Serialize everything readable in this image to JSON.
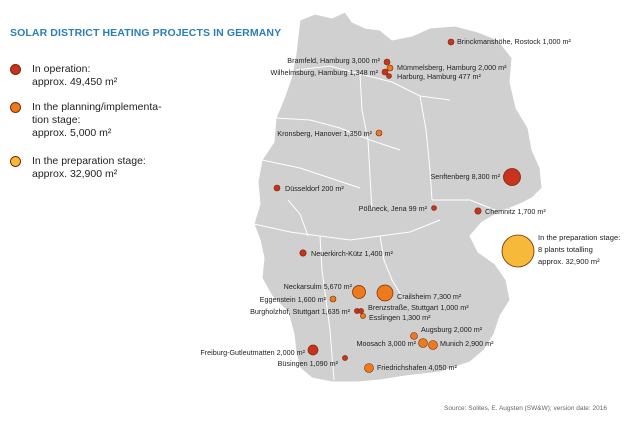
{
  "title": "SOLAR DISTRICT HEATING PROJECTS IN GERMANY",
  "legend": [
    {
      "lines": [
        "In operation:",
        "approx. 49,450 m²"
      ],
      "color": "#c8321e"
    },
    {
      "lines": [
        "In the planning/implementa-",
        "tion stage:",
        "approx. 5,000 m²"
      ],
      "color": "#ee7a1e"
    },
    {
      "lines": [
        "In the preparation stage:",
        "approx. 32,900 m²"
      ],
      "color": "#f6b93a"
    }
  ],
  "colors": {
    "operation": "#c8321e",
    "planning": "#ee7a1e",
    "preparation": "#f6b93a",
    "land": "#d0d0d0",
    "border": "#ffffff",
    "outline": "#7a2a00"
  },
  "projects": [
    {
      "name": "Brinckmanshöhe, Rostock",
      "area": "1,000 m²",
      "status": "operation"
    },
    {
      "name": "Bramfeld, Hamburg",
      "area": "3,000 m²",
      "status": "operation"
    },
    {
      "name": "Mümmelsberg, Hamburg",
      "area": "2,000 m²",
      "status": "operation"
    },
    {
      "name": "Wilhelmsburg, Hamburg",
      "area": "1,348 m²",
      "status": "operation"
    },
    {
      "name": "Harburg, Hamburg",
      "area": "477 m²",
      "status": "operation"
    },
    {
      "name": "Kronsberg, Hanover",
      "area": "1,350 m²",
      "status": "planning"
    },
    {
      "name": "Senftenberg",
      "area": "8,300 m²",
      "status": "operation"
    },
    {
      "name": "Düsseldorf",
      "area": "200 m²",
      "status": "operation"
    },
    {
      "name": "Pößneck, Jena",
      "area": "99 m²",
      "status": "operation"
    },
    {
      "name": "Chemnitz",
      "area": "1,700 m²",
      "status": "operation"
    },
    {
      "name": "Neuerkirch-Kütz",
      "area": "1,400 m²",
      "status": "operation"
    },
    {
      "name": "Neckarsulm",
      "area": "5,670 m²",
      "status": "planning"
    },
    {
      "name": "Crailsheim",
      "area": "7,300 m²",
      "status": "planning"
    },
    {
      "name": "Eggenstein",
      "area": "1,600 m²",
      "status": "planning"
    },
    {
      "name": "Burgholzhof, Stuttgart",
      "area": "1,635 m²",
      "status": "operation"
    },
    {
      "name": "Brenzstraße, Stuttgart",
      "area": "1,000 m²",
      "status": "operation"
    },
    {
      "name": "Esslingen",
      "area": "1,300 m²",
      "status": "planning"
    },
    {
      "name": "Augsburg",
      "area": "2,000 m²",
      "status": "planning"
    },
    {
      "name": "Moosach",
      "area": "3,000 m²",
      "status": "planning"
    },
    {
      "name": "Munich",
      "area": "2,900 m²",
      "status": "planning"
    },
    {
      "name": "Freiburg-Gutleutmatten",
      "area": "2,000 m²",
      "status": "operation"
    },
    {
      "name": "Büsingen",
      "area": "1,090 m²",
      "status": "operation"
    },
    {
      "name": "Friedrichshafen",
      "area": "4,050 m²",
      "status": "planning"
    }
  ],
  "preparation_label": [
    "In the preparation stage:",
    "8 plants totalling",
    "approx. 32,900 m²"
  ],
  "source": "Source: Solites, E. Augsten (SW&W); version date: 2016"
}
